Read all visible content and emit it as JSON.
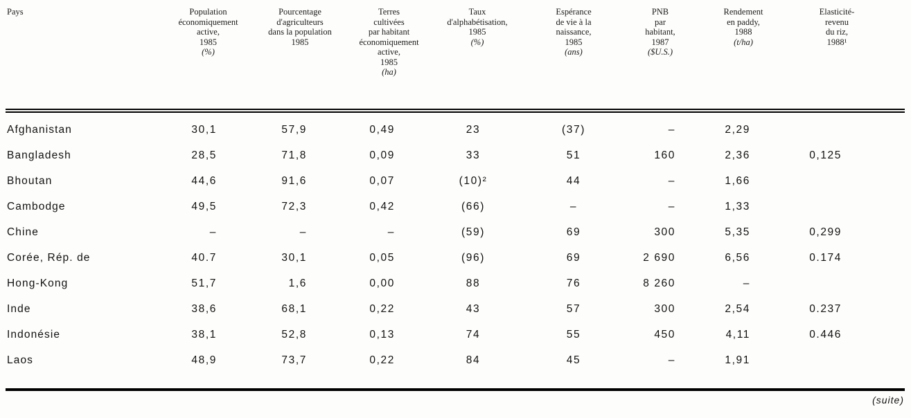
{
  "page": {
    "background": "#fdfdfb",
    "text_color": "#141414",
    "footer_note": "(suite)"
  },
  "table": {
    "columns": [
      {
        "id": "pays",
        "lines": [
          "Pays"
        ],
        "unit": ""
      },
      {
        "id": "population-active",
        "lines": [
          "Population",
          "économiquement",
          "active,",
          "1985"
        ],
        "unit": "(%)"
      },
      {
        "id": "pct-agriculteurs",
        "lines": [
          "Pourcentage",
          "d'agriculteurs",
          "dans la population",
          "1985"
        ],
        "unit": ""
      },
      {
        "id": "terres-cultivees",
        "lines": [
          "Terres",
          "cultivées",
          "par habitant",
          "économiquement",
          "active,",
          "1985"
        ],
        "unit": "(ha)"
      },
      {
        "id": "alphabetisation",
        "lines": [
          "Taux",
          "d'alphabétisation,",
          "1985"
        ],
        "unit": "(%)"
      },
      {
        "id": "esperance-vie",
        "lines": [
          "Espérance",
          "de vie à la",
          "naissance,",
          "1985"
        ],
        "unit": "(ans)"
      },
      {
        "id": "pnb",
        "lines": [
          "PNB",
          "par",
          "habitant,",
          "1987"
        ],
        "unit": "($U.S.)"
      },
      {
        "id": "rendement-paddy",
        "lines": [
          "Rendement",
          "en paddy,",
          "1988"
        ],
        "unit": "(t/ha)"
      },
      {
        "id": "elasticite-revenu",
        "lines": [
          "Elasticité-",
          "revenu",
          "du riz,",
          "1988¹"
        ],
        "unit": ""
      }
    ],
    "rows": [
      {
        "pays": "Afghanistan",
        "values": [
          "30,1",
          "57,9",
          "0,49",
          "23",
          "(37)",
          "–",
          "2,29",
          ""
        ]
      },
      {
        "pays": "Bangladesh",
        "values": [
          "28,5",
          "71,8",
          "0,09",
          "33",
          "51",
          "160",
          "2,36",
          "0,125"
        ]
      },
      {
        "pays": "Bhoutan",
        "values": [
          "44,6",
          "91,6",
          "0,07",
          "(10)²",
          "44",
          "–",
          "1,66",
          ""
        ]
      },
      {
        "pays": "Cambodge",
        "values": [
          "49,5",
          "72,3",
          "0,42",
          "(66)",
          "–",
          "–",
          "1,33",
          ""
        ]
      },
      {
        "pays": "Chine",
        "values": [
          "–",
          "–",
          "–",
          "(59)",
          "69",
          "300",
          "5,35",
          "0,299"
        ]
      },
      {
        "pays": "Corée, Rép. de",
        "values": [
          "40.7",
          "30,1",
          "0,05",
          "(96)",
          "69",
          "2 690",
          "6,56",
          "0.174"
        ]
      },
      {
        "pays": "Hong-Kong",
        "values": [
          "51,7",
          "1,6",
          "0,00",
          "88",
          "76",
          "8 260",
          "–",
          ""
        ]
      },
      {
        "pays": "Inde",
        "values": [
          "38,6",
          "68,1",
          "0,22",
          "43",
          "57",
          "300",
          "2,54",
          "0.237"
        ]
      },
      {
        "pays": "Indonésie",
        "values": [
          "38,1",
          "52,8",
          "0,13",
          "74",
          "55",
          "450",
          "4,11",
          "0.446"
        ]
      },
      {
        "pays": "Laos",
        "values": [
          "48,9",
          "73,7",
          "0,22",
          "84",
          "45",
          "–",
          "1,91",
          ""
        ]
      }
    ]
  }
}
